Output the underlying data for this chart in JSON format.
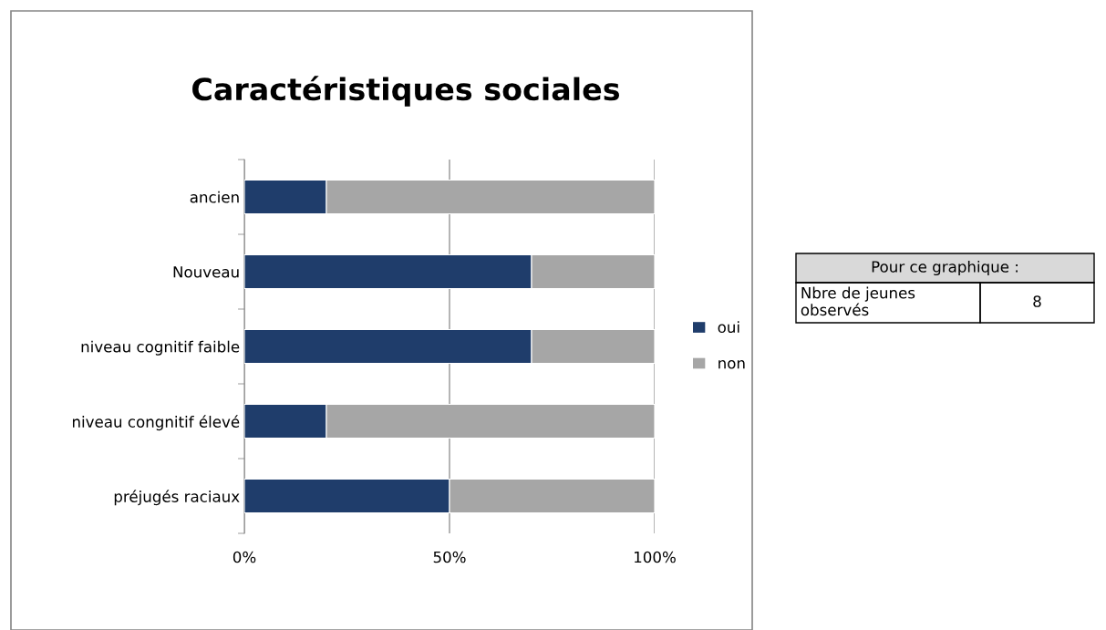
{
  "chart_data": {
    "type": "bar",
    "title": "Caractéristiques sociales",
    "orientation": "horizontal",
    "stacked": true,
    "categories": [
      "ancien",
      "Nouveau",
      "niveau cognitif faible",
      "niveau congnitif élevé",
      "préjugés raciaux"
    ],
    "series": [
      {
        "name": "oui",
        "color": "#1f3d6b",
        "values": [
          20,
          70,
          70,
          20,
          50
        ]
      },
      {
        "name": "non",
        "color": "#a6a6a6",
        "values": [
          80,
          30,
          30,
          80,
          50
        ]
      }
    ],
    "xlim": [
      0,
      100
    ],
    "xticks": [
      {
        "value": 0,
        "label": "0%"
      },
      {
        "value": 50,
        "label": "50%"
      },
      {
        "value": 100,
        "label": "100%"
      }
    ],
    "grid": "x",
    "legend": "right",
    "annotations": [
      "Pour ce graphique :",
      "Nbre de jeunes\nobservés",
      "8"
    ]
  }
}
